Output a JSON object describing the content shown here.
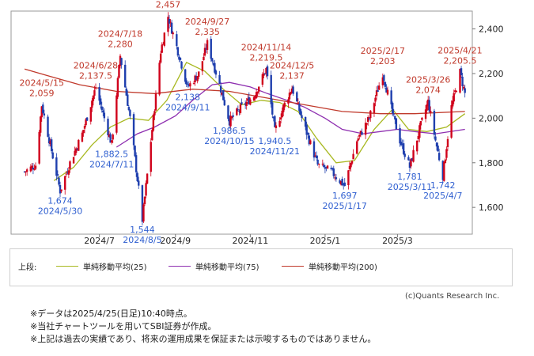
{
  "chart_data": {
    "type": "candlestick",
    "y_ticks": [
      "2,400",
      "2,200",
      "2,000",
      "1,800",
      "1,600"
    ],
    "ylim": [
      1480,
      2480
    ],
    "y_tick_values": [
      2400,
      2200,
      2000,
      1800,
      1600
    ],
    "x_ticks": [
      "2024/7",
      "2024/9",
      "2024/11",
      "2025/1",
      "2025/3"
    ],
    "x_tick_dates": [
      "2024-07-01",
      "2024-09-01",
      "2024-11-01",
      "2025-01-01",
      "2025-03-01"
    ],
    "x_range": [
      "2024-04-20",
      "2025-05-01"
    ],
    "price_path": [
      {
        "date": "2024-05-01",
        "value": 1760
      },
      {
        "date": "2024-05-10",
        "value": 1790
      },
      {
        "date": "2024-05-15",
        "value": 2059
      },
      {
        "date": "2024-05-22",
        "value": 1880
      },
      {
        "date": "2024-05-30",
        "value": 1674
      },
      {
        "date": "2024-06-07",
        "value": 1800
      },
      {
        "date": "2024-06-17",
        "value": 1930
      },
      {
        "date": "2024-06-28",
        "value": 2137.5
      },
      {
        "date": "2024-07-05",
        "value": 2000
      },
      {
        "date": "2024-07-11",
        "value": 1882.5
      },
      {
        "date": "2024-07-18",
        "value": 2280
      },
      {
        "date": "2024-07-26",
        "value": 2000
      },
      {
        "date": "2024-08-05",
        "value": 1544
      },
      {
        "date": "2024-08-14",
        "value": 2000
      },
      {
        "date": "2024-08-20",
        "value": 2300
      },
      {
        "date": "2024-08-26",
        "value": 2457
      },
      {
        "date": "2024-09-03",
        "value": 2300
      },
      {
        "date": "2024-09-11",
        "value": 2138
      },
      {
        "date": "2024-09-20",
        "value": 2200
      },
      {
        "date": "2024-09-27",
        "value": 2335
      },
      {
        "date": "2024-10-07",
        "value": 2150
      },
      {
        "date": "2024-10-15",
        "value": 1986.5
      },
      {
        "date": "2024-10-25",
        "value": 2050
      },
      {
        "date": "2024-11-04",
        "value": 2100
      },
      {
        "date": "2024-11-14",
        "value": 2219.5
      },
      {
        "date": "2024-11-21",
        "value": 1940.5
      },
      {
        "date": "2024-11-28",
        "value": 2050
      },
      {
        "date": "2024-12-05",
        "value": 2137
      },
      {
        "date": "2024-12-16",
        "value": 1950
      },
      {
        "date": "2024-12-26",
        "value": 1790
      },
      {
        "date": "2025-01-06",
        "value": 1760
      },
      {
        "date": "2025-01-17",
        "value": 1697
      },
      {
        "date": "2025-01-27",
        "value": 1900
      },
      {
        "date": "2025-02-06",
        "value": 2000
      },
      {
        "date": "2025-02-17",
        "value": 2203
      },
      {
        "date": "2025-02-25",
        "value": 2020
      },
      {
        "date": "2025-03-03",
        "value": 1900
      },
      {
        "date": "2025-03-11",
        "value": 1781
      },
      {
        "date": "2025-03-19",
        "value": 1950
      },
      {
        "date": "2025-03-26",
        "value": 2074
      },
      {
        "date": "2025-04-01",
        "value": 1900
      },
      {
        "date": "2025-04-07",
        "value": 1742
      },
      {
        "date": "2025-04-14",
        "value": 2050
      },
      {
        "date": "2025-04-21",
        "value": 2205.5
      },
      {
        "date": "2025-04-25",
        "value": 2110
      }
    ],
    "series": [
      {
        "name": "単純移動平均(25)",
        "color": "#a8b820",
        "points": [
          {
            "date": "2024-05-25",
            "value": 1720
          },
          {
            "date": "2024-06-10",
            "value": 1780
          },
          {
            "date": "2024-06-25",
            "value": 1880
          },
          {
            "date": "2024-07-10",
            "value": 1960
          },
          {
            "date": "2024-07-25",
            "value": 2000
          },
          {
            "date": "2024-08-10",
            "value": 1990
          },
          {
            "date": "2024-08-25",
            "value": 2080
          },
          {
            "date": "2024-09-10",
            "value": 2250
          },
          {
            "date": "2024-09-25",
            "value": 2210
          },
          {
            "date": "2024-10-10",
            "value": 2130
          },
          {
            "date": "2024-10-25",
            "value": 2060
          },
          {
            "date": "2024-11-10",
            "value": 2080
          },
          {
            "date": "2024-11-25",
            "value": 2070
          },
          {
            "date": "2024-12-10",
            "value": 2030
          },
          {
            "date": "2024-12-25",
            "value": 1910
          },
          {
            "date": "2025-01-10",
            "value": 1800
          },
          {
            "date": "2025-01-25",
            "value": 1810
          },
          {
            "date": "2025-02-10",
            "value": 1950
          },
          {
            "date": "2025-02-25",
            "value": 2040
          },
          {
            "date": "2025-03-10",
            "value": 1950
          },
          {
            "date": "2025-03-25",
            "value": 1940
          },
          {
            "date": "2025-04-10",
            "value": 1960
          },
          {
            "date": "2025-04-25",
            "value": 2020
          }
        ]
      },
      {
        "name": "単純移動平均(75)",
        "color": "#8e2fb0",
        "points": [
          {
            "date": "2024-07-15",
            "value": 1870
          },
          {
            "date": "2024-08-01",
            "value": 1930
          },
          {
            "date": "2024-08-15",
            "value": 1960
          },
          {
            "date": "2024-09-01",
            "value": 2010
          },
          {
            "date": "2024-09-15",
            "value": 2080
          },
          {
            "date": "2024-10-01",
            "value": 2150
          },
          {
            "date": "2024-10-15",
            "value": 2160
          },
          {
            "date": "2024-11-01",
            "value": 2140
          },
          {
            "date": "2024-11-15",
            "value": 2110
          },
          {
            "date": "2024-12-01",
            "value": 2080
          },
          {
            "date": "2024-12-15",
            "value": 2050
          },
          {
            "date": "2025-01-01",
            "value": 2000
          },
          {
            "date": "2025-01-15",
            "value": 1950
          },
          {
            "date": "2025-02-01",
            "value": 1930
          },
          {
            "date": "2025-02-15",
            "value": 1940
          },
          {
            "date": "2025-03-01",
            "value": 1950
          },
          {
            "date": "2025-03-15",
            "value": 1940
          },
          {
            "date": "2025-04-01",
            "value": 1930
          },
          {
            "date": "2025-04-25",
            "value": 1950
          }
        ]
      },
      {
        "name": "単純移動平均(200)",
        "color": "#c0392b",
        "points": [
          {
            "date": "2024-05-01",
            "value": 2220
          },
          {
            "date": "2024-05-20",
            "value": 2190
          },
          {
            "date": "2024-06-15",
            "value": 2150
          },
          {
            "date": "2024-07-15",
            "value": 2120
          },
          {
            "date": "2024-08-15",
            "value": 2110
          },
          {
            "date": "2024-09-15",
            "value": 2130
          },
          {
            "date": "2024-10-15",
            "value": 2120
          },
          {
            "date": "2024-11-15",
            "value": 2090
          },
          {
            "date": "2024-12-15",
            "value": 2060
          },
          {
            "date": "2025-01-15",
            "value": 2030
          },
          {
            "date": "2025-02-15",
            "value": 2020
          },
          {
            "date": "2025-03-15",
            "value": 2020
          },
          {
            "date": "2025-04-25",
            "value": 2030
          }
        ]
      }
    ],
    "highs": [
      {
        "date_text": "2024/5/15",
        "value_text": "2,059",
        "date": "2024-05-15",
        "value": 2059
      },
      {
        "date_text": "2024/6/28",
        "value_text": "2,137.5",
        "date": "2024-06-28",
        "value": 2137.5
      },
      {
        "date_text": "2024/7/18",
        "value_text": "2,280",
        "date": "2024-07-18",
        "value": 2280
      },
      {
        "date_text": "2024/8/26",
        "value_text": "2,457",
        "date": "2024-08-26",
        "value": 2457
      },
      {
        "date_text": "2024/9/27",
        "value_text": "2,335",
        "date": "2024-09-27",
        "value": 2335
      },
      {
        "date_text": "2024/11/14",
        "value_text": "2,219.5",
        "date": "2024-11-14",
        "value": 2219.5
      },
      {
        "date_text": "2024/12/5",
        "value_text": "2,137",
        "date": "2024-12-05",
        "value": 2137
      },
      {
        "date_text": "2025/2/17",
        "value_text": "2,203",
        "date": "2025-02-17",
        "value": 2203
      },
      {
        "date_text": "2025/3/26",
        "value_text": "2,074",
        "date": "2025-03-26",
        "value": 2074
      },
      {
        "date_text": "2025/4/21",
        "value_text": "2,205.5",
        "date": "2025-04-21",
        "value": 2205.5
      }
    ],
    "lows": [
      {
        "date_text": "2024/5/30",
        "value_text": "1,674",
        "date": "2024-05-30",
        "value": 1674
      },
      {
        "date_text": "2024/7/11",
        "value_text": "1,882.5",
        "date": "2024-07-11",
        "value": 1882.5
      },
      {
        "date_text": "2024/8/5",
        "value_text": "1,544",
        "date": "2024-08-05",
        "value": 1544
      },
      {
        "date_text": "2024/9/11",
        "value_text": "2,138",
        "date": "2024-09-11",
        "value": 2138
      },
      {
        "date_text": "2024/10/15",
        "value_text": "1,986.5",
        "date": "2024-10-15",
        "value": 1986.5
      },
      {
        "date_text": "2024/11/21",
        "value_text": "1,940.5",
        "date": "2024-11-21",
        "value": 1940.5
      },
      {
        "date_text": "2025/1/17",
        "value_text": "1,697",
        "date": "2025-01-17",
        "value": 1697
      },
      {
        "date_text": "2025/3/11",
        "value_text": "1,781",
        "date": "2025-03-11",
        "value": 1781
      },
      {
        "date_text": "2025/4/7",
        "value_text": "1,742",
        "date": "2025-04-07",
        "value": 1742
      }
    ],
    "grid": false
  },
  "legend": {
    "prefix": "上段:",
    "items": [
      {
        "label": "単純移動平均(25)",
        "color": "#a8b820"
      },
      {
        "label": "単純移動平均(75)",
        "color": "#8e2fb0"
      },
      {
        "label": "単純移動平均(200)",
        "color": "#c0392b"
      }
    ]
  },
  "colors": {
    "up": "#d0021b",
    "down": "#1f3fae",
    "high_label": "#c0392b",
    "low_label": "#2f5fd0"
  },
  "copyright": "(c)Quants Research Inc.",
  "notes": [
    "※データは2025/4/25(日足)10:40時点。",
    "※当社チャートツールを用いてSBI証券が作成。",
    "※上記は過去の実績であり、将来の運用成果を保証または示唆するものではありません。"
  ]
}
